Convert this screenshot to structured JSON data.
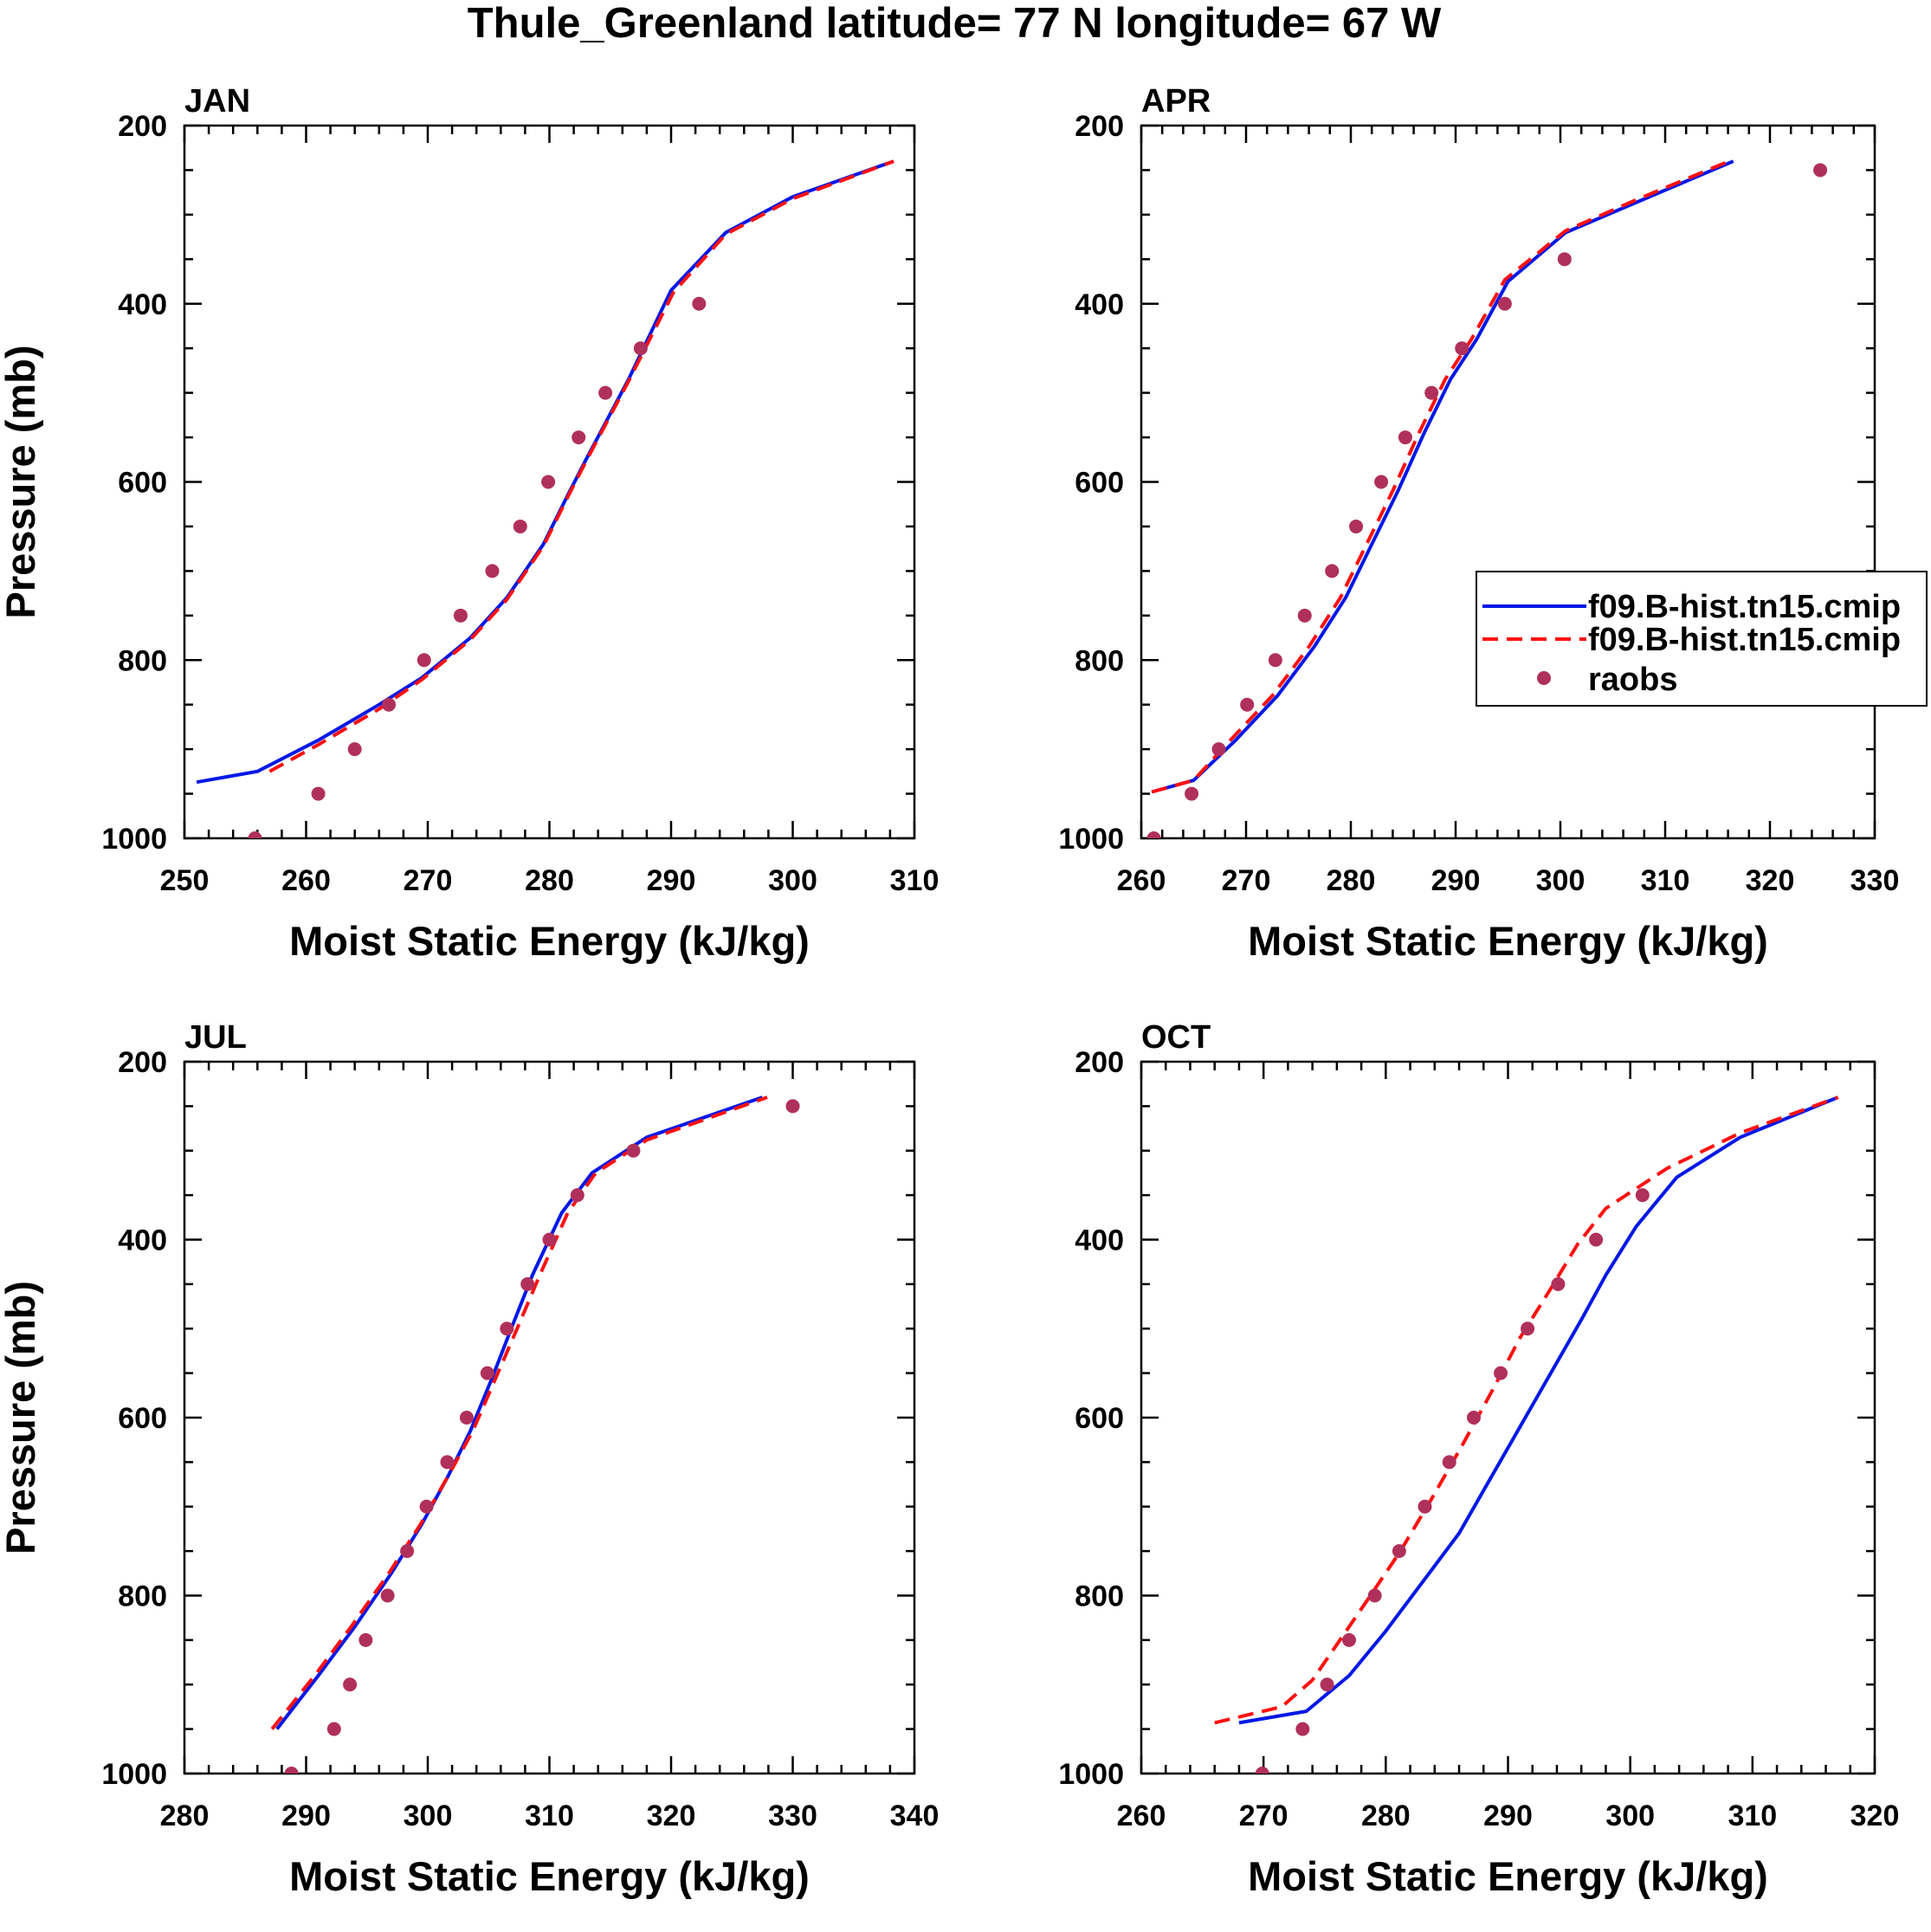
{
  "title": "Thule_Greenland  latitude= 77 N longitude= 67 W",
  "legend": {
    "entries": [
      {
        "label": "f09.B-hist.tn15.cmip",
        "style": "solid",
        "color": "#0018e6"
      },
      {
        "label": "f09.B-hist.tn15.cmip",
        "style": "dashed",
        "color": "#ff1010"
      },
      {
        "label": "raobs",
        "style": "marker",
        "color": "#b0305c"
      }
    ]
  },
  "chart_data": [
    {
      "type": "line",
      "title": "JAN",
      "xlabel": "Moist Static Energy (kJ/kg)",
      "ylabel": "Pressure (mb)",
      "xlim": [
        250,
        310
      ],
      "ylim": [
        1000,
        200
      ],
      "xticks": [
        "250",
        "260",
        "270",
        "280",
        "290",
        "300",
        "310"
      ],
      "yticks": [
        "200",
        "400",
        "600",
        "800",
        "1000"
      ],
      "series": [
        {
          "name": "f09.B-hist.tn15.cmip",
          "style": "solid",
          "x": [
            251,
            256,
            261,
            266,
            269.5,
            273.5,
            276.5,
            279.5,
            281.5,
            283,
            286.5,
            290,
            294.5,
            300,
            308.3
          ],
          "y": [
            937,
            925,
            890,
            850,
            820,
            775,
            730,
            670,
            615,
            575,
            485,
            385,
            320,
            280,
            240
          ]
        },
        {
          "name": "f09.B-hist.tn15.cmip",
          "style": "dashed",
          "x": [
            257,
            261,
            266,
            269.5,
            273.5,
            276.5,
            279.5,
            281.5,
            283,
            286.5,
            290.2,
            294.5,
            300,
            308.3
          ],
          "y": [
            925,
            895,
            855,
            822,
            777,
            732,
            672,
            617,
            577,
            487,
            387,
            322,
            282,
            240
          ]
        },
        {
          "name": "raobs",
          "style": "marker",
          "x": [
            255.8,
            261,
            264,
            266.8,
            269.7,
            272.7,
            275.3,
            277.6,
            279.9,
            282.4,
            284.6,
            287.5,
            292.3
          ],
          "y": [
            1000,
            950,
            900,
            850,
            800,
            750,
            700,
            650,
            600,
            550,
            500,
            450,
            400
          ]
        }
      ]
    },
    {
      "type": "line",
      "title": "APR",
      "xlabel": "Moist Static Energy (kJ/kg)",
      "ylabel": "",
      "xlim": [
        260,
        330
      ],
      "ylim": [
        1000,
        200
      ],
      "xticks": [
        "260",
        "270",
        "280",
        "290",
        "300",
        "310",
        "320",
        "330"
      ],
      "yticks": [
        "200",
        "400",
        "600",
        "800",
        "1000"
      ],
      "series": [
        {
          "name": "f09.B-hist.tn15.cmip",
          "style": "solid",
          "x": [
            261,
            265,
            269,
            273,
            276.5,
            279.5,
            282,
            284.5,
            287,
            289.5,
            292,
            295,
            300.5,
            307.5,
            316.5
          ],
          "y": [
            948,
            935,
            890,
            840,
            785,
            730,
            670,
            610,
            545,
            485,
            440,
            375,
            320,
            285,
            240
          ]
        },
        {
          "name": "f09.B-hist.tn15.cmip",
          "style": "dashed",
          "x": [
            261,
            265,
            268.5,
            272.5,
            276,
            279,
            281.5,
            284,
            286.5,
            289,
            291.5,
            294.7,
            300.5,
            307.5,
            316.5
          ],
          "y": [
            948,
            935,
            890,
            840,
            785,
            730,
            670,
            610,
            545,
            485,
            440,
            373,
            318,
            282,
            238
          ]
        },
        {
          "name": "raobs",
          "style": "marker",
          "x": [
            261.2,
            264.8,
            267.4,
            270.1,
            272.8,
            275.6,
            278.2,
            280.5,
            282.9,
            285.2,
            287.7,
            290.6,
            294.7,
            300.4,
            324.8
          ],
          "y": [
            1000,
            950,
            900,
            850,
            800,
            750,
            700,
            650,
            600,
            550,
            500,
            450,
            400,
            350,
            250
          ]
        }
      ]
    },
    {
      "type": "line",
      "title": "JUL",
      "xlabel": "Moist Static Energy (kJ/kg)",
      "ylabel": "Pressure (mb)",
      "xlim": [
        280,
        340
      ],
      "ylim": [
        1000,
        200
      ],
      "xticks": [
        "280",
        "290",
        "300",
        "310",
        "320",
        "330",
        "340"
      ],
      "yticks": [
        "200",
        "400",
        "600",
        "800",
        "1000"
      ],
      "series": [
        {
          "name": "f09.B-hist.tn15.cmip",
          "style": "solid",
          "x": [
            287.6,
            291,
            294,
            297,
            299.5,
            301.7,
            303.5,
            305.3,
            307,
            308.6,
            311,
            313.5,
            318,
            327.5
          ],
          "y": [
            950,
            890,
            835,
            775,
            720,
            665,
            615,
            555,
            495,
            440,
            370,
            325,
            285,
            240
          ]
        },
        {
          "name": "f09.B-hist.tn15.cmip",
          "style": "dashed",
          "x": [
            287.2,
            290.7,
            293.7,
            296.8,
            299.4,
            301.7,
            303.7,
            305.6,
            307.5,
            309.2,
            311.5,
            313.8,
            318,
            327.9
          ],
          "y": [
            950,
            890,
            835,
            775,
            720,
            665,
            615,
            555,
            495,
            440,
            370,
            325,
            288,
            240
          ]
        },
        {
          "name": "raobs",
          "style": "marker",
          "x": [
            288.8,
            292.3,
            293.6,
            294.9,
            296.7,
            298.3,
            299.9,
            301.6,
            303.2,
            304.9,
            306.5,
            308.2,
            310,
            312.3,
            316.9,
            330
          ],
          "y": [
            1000,
            950,
            900,
            850,
            800,
            750,
            700,
            650,
            600,
            550,
            500,
            450,
            400,
            350,
            300,
            250
          ]
        }
      ]
    },
    {
      "type": "line",
      "title": "OCT",
      "xlabel": "Moist Static Energy (kJ/kg)",
      "ylabel": "",
      "xlim": [
        260,
        320
      ],
      "ylim": [
        1000,
        200
      ],
      "xticks": [
        "260",
        "270",
        "280",
        "290",
        "300",
        "310",
        "320"
      ],
      "yticks": [
        "200",
        "400",
        "600",
        "800",
        "1000"
      ],
      "series": [
        {
          "name": "f09.B-hist.tn15.cmip",
          "style": "solid",
          "x": [
            268,
            273.5,
            277,
            280,
            283,
            286,
            288.5,
            291,
            293.5,
            296,
            298,
            300.5,
            303.8,
            309,
            317
          ],
          "y": [
            943,
            930,
            890,
            840,
            785,
            730,
            670,
            610,
            550,
            490,
            440,
            385,
            330,
            285,
            240
          ]
        },
        {
          "name": "f09.B-hist.tn15.cmip",
          "style": "dashed",
          "x": [
            266,
            271.5,
            274,
            276,
            278.5,
            281.2,
            283.8,
            286.3,
            288.7,
            291,
            293.5,
            295.7,
            298,
            303,
            309,
            317
          ],
          "y": [
            943,
            925,
            895,
            855,
            805,
            750,
            690,
            630,
            570,
            510,
            455,
            405,
            365,
            320,
            280,
            240
          ]
        },
        {
          "name": "raobs",
          "style": "marker",
          "x": [
            269.9,
            273.2,
            275.2,
            277,
            279.1,
            281.1,
            283.2,
            285.2,
            287.2,
            289.4,
            291.6,
            294.1,
            297.2,
            301
          ],
          "y": [
            1000,
            950,
            900,
            850,
            800,
            750,
            700,
            650,
            600,
            550,
            500,
            450,
            400,
            350
          ]
        }
      ]
    }
  ]
}
